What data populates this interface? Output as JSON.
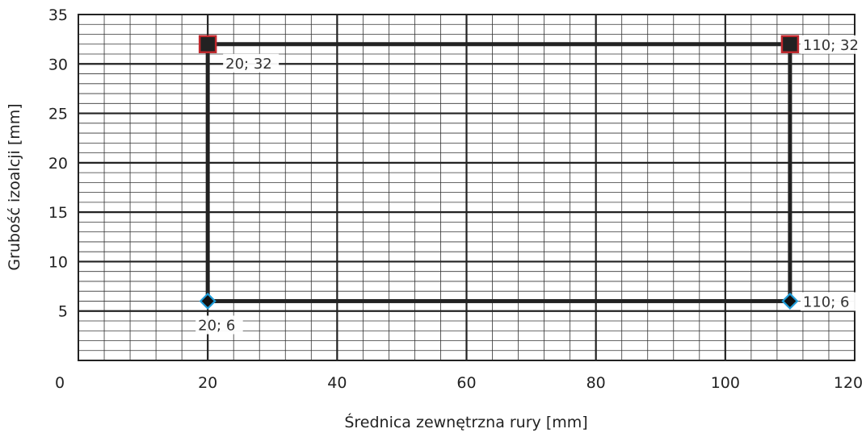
{
  "chart_data": {
    "type": "scatter",
    "title": "",
    "xlabel": "Średnica zewnętrzna rury [mm]",
    "ylabel": "Grubość izoalcji [mm]",
    "xlim": [
      0,
      120
    ],
    "ylim": [
      0,
      35
    ],
    "x_ticks": [
      0,
      20,
      40,
      60,
      80,
      100,
      120
    ],
    "y_ticks": [
      5,
      10,
      15,
      20,
      25,
      30,
      35
    ],
    "x_minor_step": 4,
    "y_minor_step": 1,
    "grid": true,
    "series": [
      {
        "marker": "square",
        "fill": "#222222",
        "stroke": "#c0282d",
        "points": [
          {
            "x": 20,
            "y": 32,
            "label": "20; 32"
          },
          {
            "x": 110,
            "y": 32,
            "label": "110; 32"
          }
        ]
      },
      {
        "marker": "diamond",
        "fill": "#111111",
        "stroke": "#1e9bd7",
        "points": [
          {
            "x": 20,
            "y": 6,
            "label": "20; 6"
          },
          {
            "x": 110,
            "y": 6,
            "label": "110; 6"
          }
        ]
      }
    ],
    "range_box": {
      "x": [
        20,
        110
      ],
      "y": [
        6,
        32
      ]
    }
  }
}
